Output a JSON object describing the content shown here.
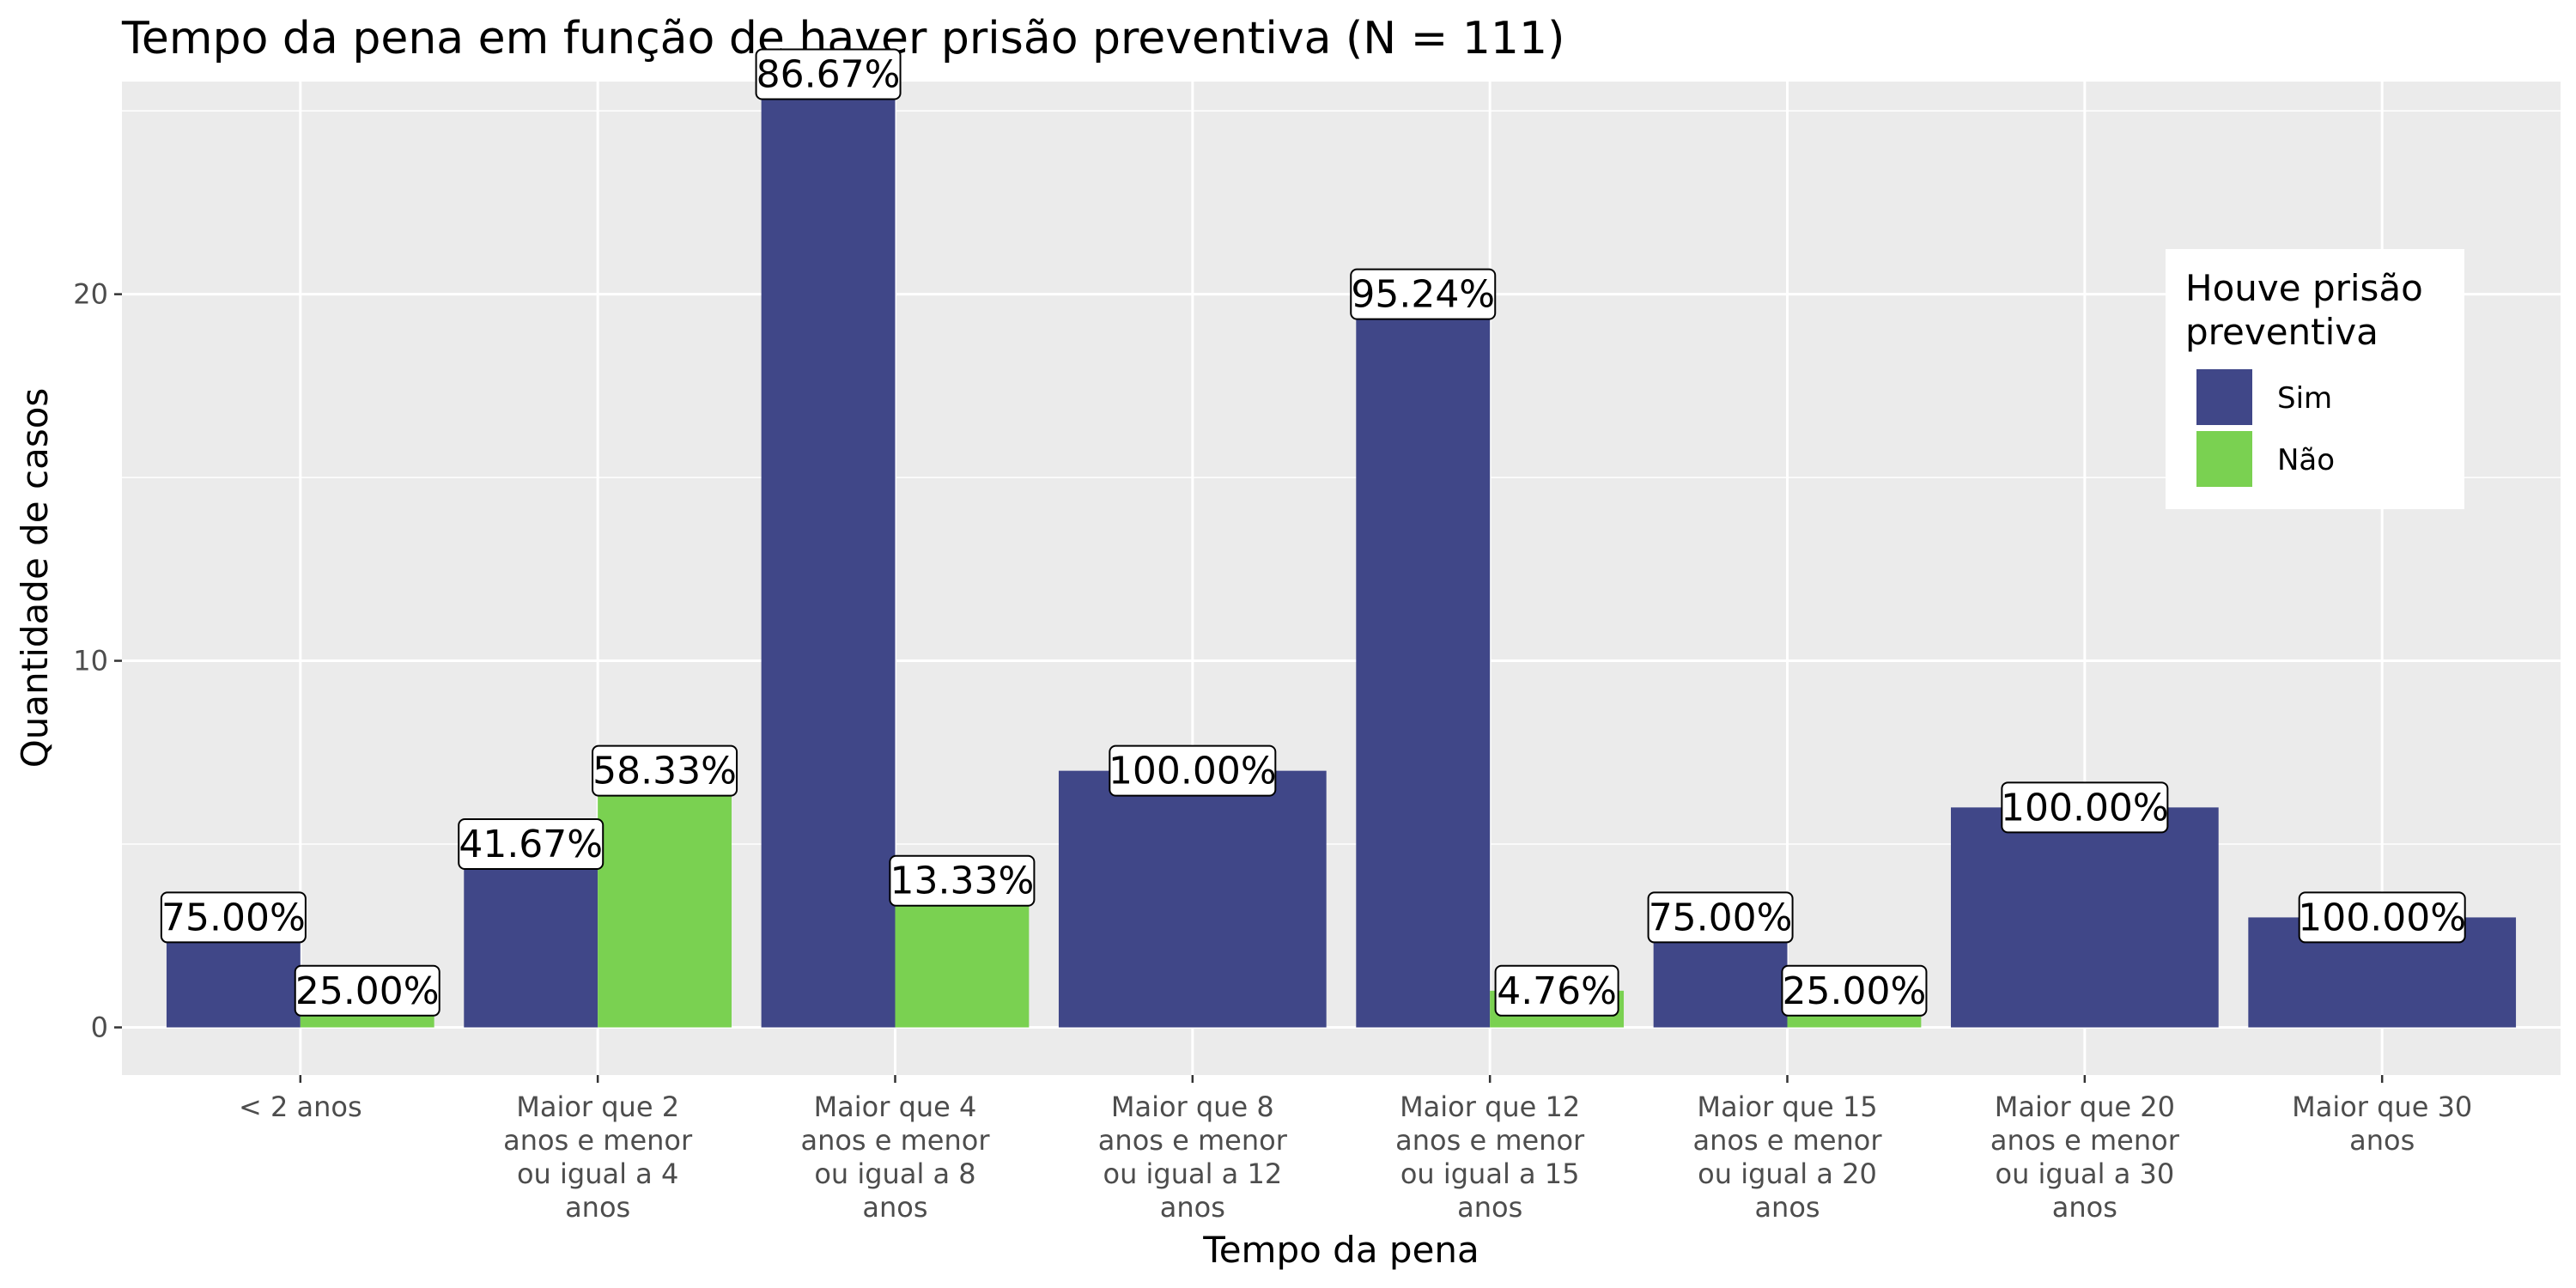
{
  "chart_data": {
    "type": "bar",
    "title": "Tempo da pena em função de haver prisão preventiva (N = 111)",
    "xlabel": "Tempo da pena",
    "ylabel": "Quantidade de casos",
    "ylim": [
      -1.3,
      25.8
    ],
    "yticks": [
      0,
      10,
      20
    ],
    "grid": true,
    "legend": {
      "title": [
        "Houve prisão",
        "preventiva"
      ],
      "position": "top-right"
    },
    "categories": [
      [
        "< 2 anos"
      ],
      [
        "Maior que 2",
        "anos e menor",
        "ou igual a 4",
        "anos"
      ],
      [
        "Maior que 4",
        "anos e menor",
        "ou igual a 8",
        "anos"
      ],
      [
        "Maior que 8",
        "anos e menor",
        "ou igual a 12",
        "anos"
      ],
      [
        "Maior que 12",
        "anos e menor",
        "ou igual a 15",
        "anos"
      ],
      [
        "Maior que 15",
        "anos e menor",
        "ou igual a 20",
        "anos"
      ],
      [
        "Maior que 20",
        "anos e menor",
        "ou igual a 30",
        "anos"
      ],
      [
        "Maior que 30",
        "anos"
      ]
    ],
    "series": [
      {
        "name": "Sim",
        "color": "#404788",
        "values": [
          3,
          5,
          26,
          7,
          20,
          3,
          6,
          3
        ],
        "labels": [
          "75.00%",
          "41.67%",
          "86.67%",
          "100.00%",
          "95.24%",
          "75.00%",
          "100.00%",
          "100.00%"
        ]
      },
      {
        "name": "Não",
        "color": "#7AD151",
        "values": [
          1,
          7,
          4,
          0,
          1,
          1,
          0,
          0
        ],
        "labels": [
          "25.00%",
          "58.33%",
          "13.33%",
          null,
          "4.76%",
          "25.00%",
          null,
          null
        ]
      }
    ]
  }
}
